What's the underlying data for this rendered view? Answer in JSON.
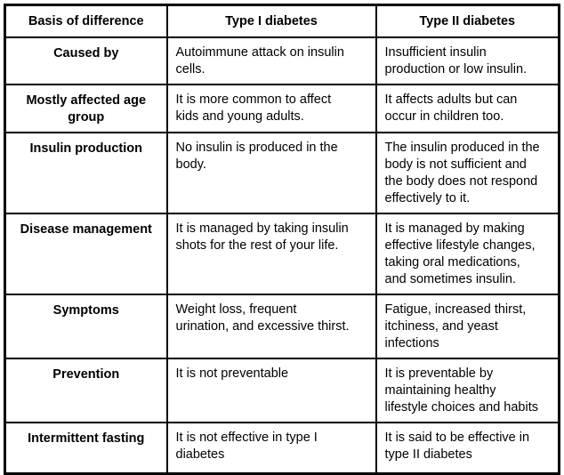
{
  "table": {
    "headers": [
      "Basis of difference",
      "Type I diabetes",
      "Type II diabetes"
    ],
    "rows": [
      {
        "basis": "Caused by",
        "type1": "Autoimmune attack on insulin\ncells.",
        "type2": "Insufficient insulin\nproduction or low insulin."
      },
      {
        "basis": "Mostly affected age group",
        "type1": "It is more common to affect\nkids and young adults.",
        "type2": "It affects adults but can\noccur in children too."
      },
      {
        "basis": "Insulin production",
        "type1": "No insulin is produced in the\nbody.",
        "type2": "The insulin produced in the\nbody is not sufficient and\nthe body does not respond\neffectively to it."
      },
      {
        "basis": "Disease management",
        "type1": "It is managed by taking insulin\nshots for the rest of your life.",
        "type2": "It is managed by making\neffective lifestyle changes,\ntaking oral medications,\nand sometimes insulin."
      },
      {
        "basis": "Symptoms",
        "type1": "Weight loss, frequent\nurination, and excessive thirst.",
        "type2": "Fatigue, increased thirst,\nitchiness, and yeast\ninfections"
      },
      {
        "basis": "Prevention",
        "type1": "It is not preventable",
        "type2": "It is preventable by\nmaintaining healthy\nlifestyle choices and habits"
      },
      {
        "basis": "Intermittent fasting",
        "type1": "It is not effective in type I\ndiabetes",
        "type2": "It is said to be effective in\ntype II diabetes"
      }
    ]
  }
}
